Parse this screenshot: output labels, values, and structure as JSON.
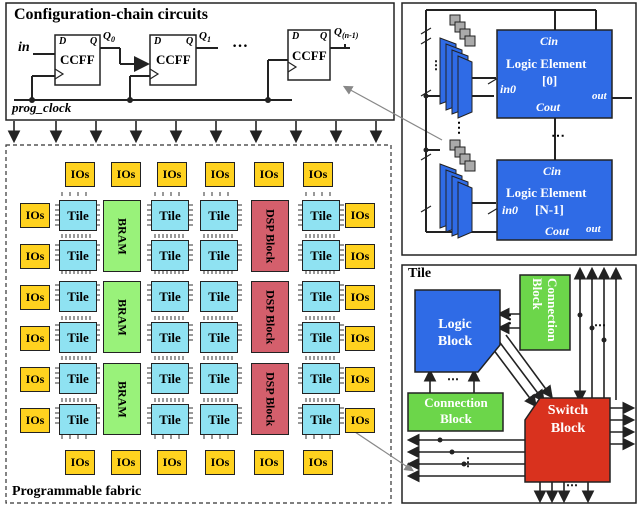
{
  "config": {
    "title": "Configuration-chain circuits",
    "in_label": "in",
    "clock_label": "prog_clock",
    "ff_label": "CCFF",
    "d_label": "D",
    "q_label": "Q",
    "q0": "Q",
    "q0_sub": "0",
    "q1": "Q",
    "q1_sub": "1",
    "qn": "Q",
    "qn_sub": "(n-1)",
    "dots": "…"
  },
  "fabric": {
    "title": "Programmable fabric",
    "io_label": "IOs",
    "tile_label": "Tile",
    "bram_label": "BRAM",
    "dsp_label": "DSP Block"
  },
  "logic_block": {
    "le_title": "Logic Element",
    "le_index_0": "[0]",
    "le_index_n": "[N-1]",
    "cin": "Cin",
    "cout": "Cout",
    "in0": "in0",
    "out": "out"
  },
  "tile_detail": {
    "title": "Tile",
    "logic_block": "Logic Block",
    "connection_block": "Connection Block",
    "switch_block": "Switch Block"
  },
  "colors": {
    "io": "#ffd21f",
    "tile": "#8fe2f2",
    "bram": "#99f27a",
    "dsp": "#d45f6c",
    "logic": "#2f6be6",
    "connection": "#6cd64a",
    "switch": "#d9321e"
  }
}
